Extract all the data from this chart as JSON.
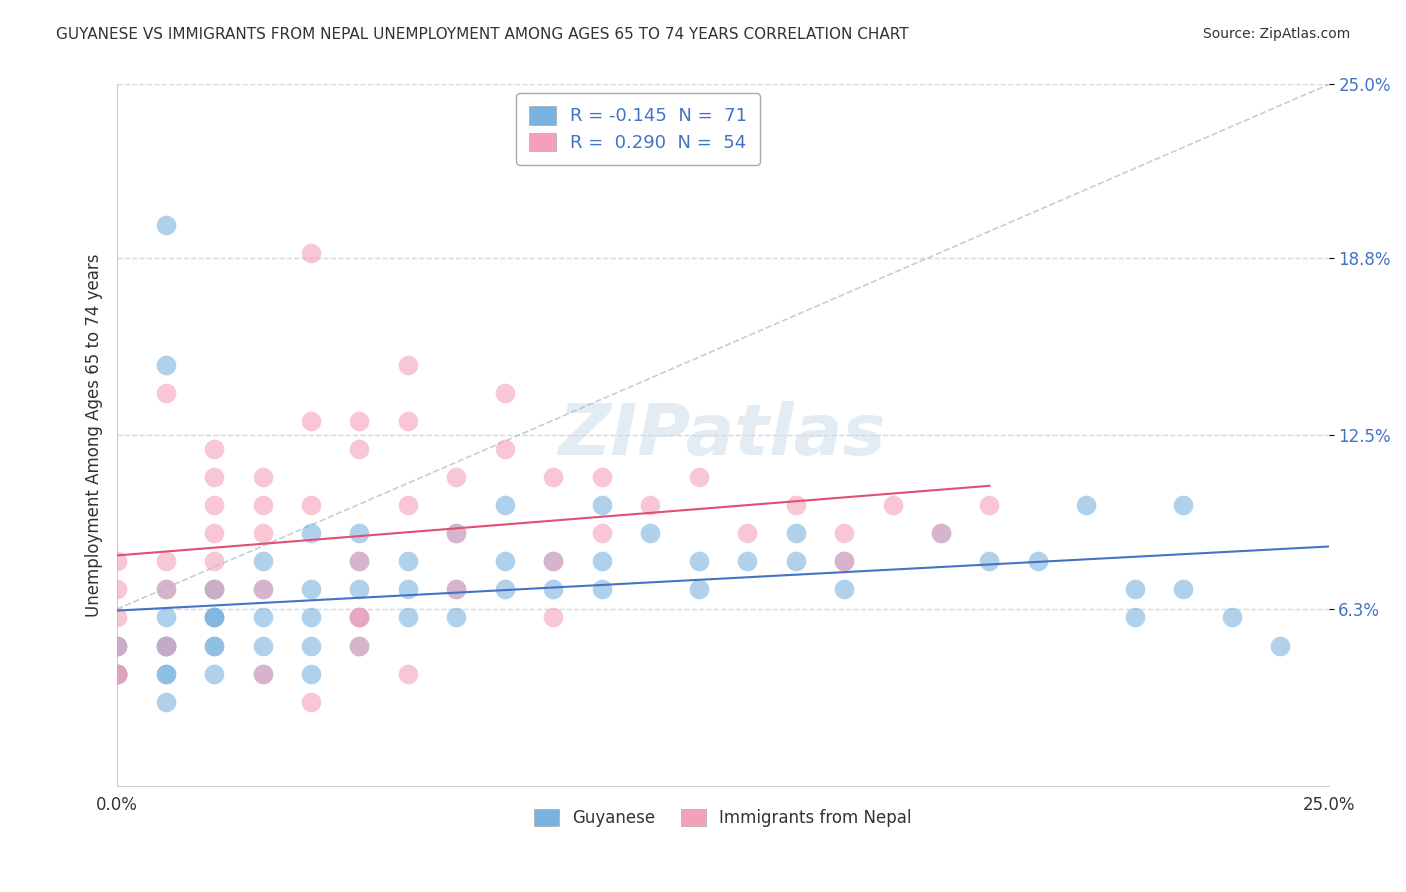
{
  "title": "GUYANESE VS IMMIGRANTS FROM NEPAL UNEMPLOYMENT AMONG AGES 65 TO 74 YEARS CORRELATION CHART",
  "source": "Source: ZipAtlas.com",
  "xlabel": "",
  "ylabel": "Unemployment Among Ages 65 to 74 years",
  "xlim": [
    0.0,
    0.25
  ],
  "ylim": [
    0.0,
    0.25
  ],
  "xtick_labels": [
    "0.0%",
    "25.0%"
  ],
  "ytick_labels": [
    "6.3%",
    "12.5%",
    "18.8%",
    "25.0%"
  ],
  "ytick_values": [
    0.063,
    0.125,
    0.188,
    0.25
  ],
  "legend_entries": [
    {
      "label": "R = -0.145  N =  71",
      "color": "#aec6e8",
      "R": -0.145,
      "N": 71
    },
    {
      "label": "R =  0.290  N =  54",
      "color": "#f4b8c8",
      "R": 0.29,
      "N": 54
    }
  ],
  "guyanese_color": "#7ab3e0",
  "nepal_color": "#f4a0b8",
  "guyanese_line_color": "#4472c4",
  "nepal_line_color": "#e05070",
  "watermark": "ZIPatlas",
  "watermark_color": "#c8d8e8",
  "background_color": "#ffffff",
  "grid_color": "#d0d8e0",
  "guyanese_scatter_x": [
    0.02,
    0.0,
    0.0,
    0.0,
    0.0,
    0.0,
    0.0,
    0.01,
    0.01,
    0.01,
    0.01,
    0.01,
    0.01,
    0.01,
    0.02,
    0.02,
    0.02,
    0.02,
    0.02,
    0.03,
    0.03,
    0.03,
    0.03,
    0.04,
    0.04,
    0.04,
    0.04,
    0.05,
    0.05,
    0.05,
    0.05,
    0.06,
    0.06,
    0.07,
    0.07,
    0.08,
    0.08,
    0.09,
    0.1,
    0.1,
    0.11,
    0.12,
    0.13,
    0.14,
    0.15,
    0.15,
    0.17,
    0.18,
    0.19,
    0.2,
    0.21,
    0.21,
    0.22,
    0.23,
    0.02,
    0.02,
    0.01,
    0.03,
    0.04,
    0.05,
    0.06,
    0.07,
    0.08,
    0.09,
    0.1,
    0.12,
    0.14,
    0.22,
    0.24,
    0.01,
    0.01
  ],
  "guyanese_scatter_y": [
    0.07,
    0.05,
    0.05,
    0.04,
    0.04,
    0.04,
    0.04,
    0.06,
    0.05,
    0.05,
    0.05,
    0.04,
    0.04,
    0.03,
    0.07,
    0.06,
    0.06,
    0.05,
    0.04,
    0.08,
    0.07,
    0.06,
    0.04,
    0.09,
    0.07,
    0.06,
    0.04,
    0.09,
    0.08,
    0.07,
    0.05,
    0.08,
    0.07,
    0.09,
    0.07,
    0.1,
    0.08,
    0.08,
    0.1,
    0.07,
    0.09,
    0.08,
    0.08,
    0.09,
    0.08,
    0.07,
    0.09,
    0.08,
    0.08,
    0.1,
    0.06,
    0.07,
    0.07,
    0.06,
    0.06,
    0.05,
    0.07,
    0.05,
    0.05,
    0.06,
    0.06,
    0.06,
    0.07,
    0.07,
    0.08,
    0.07,
    0.08,
    0.1,
    0.05,
    0.15,
    0.2
  ],
  "nepal_scatter_x": [
    0.0,
    0.0,
    0.0,
    0.0,
    0.0,
    0.0,
    0.01,
    0.01,
    0.01,
    0.02,
    0.02,
    0.02,
    0.03,
    0.03,
    0.04,
    0.04,
    0.05,
    0.05,
    0.06,
    0.06,
    0.07,
    0.07,
    0.08,
    0.09,
    0.09,
    0.1,
    0.1,
    0.11,
    0.12,
    0.13,
    0.14,
    0.15,
    0.15,
    0.16,
    0.17,
    0.18,
    0.04,
    0.06,
    0.08,
    0.05,
    0.03,
    0.02,
    0.01,
    0.02,
    0.07,
    0.09,
    0.03,
    0.04,
    0.05,
    0.06,
    0.05,
    0.05,
    0.02,
    0.03
  ],
  "nepal_scatter_y": [
    0.08,
    0.07,
    0.06,
    0.05,
    0.04,
    0.04,
    0.08,
    0.07,
    0.05,
    0.09,
    0.08,
    0.07,
    0.11,
    0.09,
    0.13,
    0.1,
    0.12,
    0.08,
    0.13,
    0.1,
    0.11,
    0.09,
    0.12,
    0.11,
    0.08,
    0.11,
    0.09,
    0.1,
    0.11,
    0.09,
    0.1,
    0.09,
    0.08,
    0.1,
    0.09,
    0.1,
    0.19,
    0.15,
    0.14,
    0.13,
    0.1,
    0.12,
    0.14,
    0.11,
    0.07,
    0.06,
    0.04,
    0.03,
    0.05,
    0.04,
    0.06,
    0.06,
    0.1,
    0.07
  ]
}
